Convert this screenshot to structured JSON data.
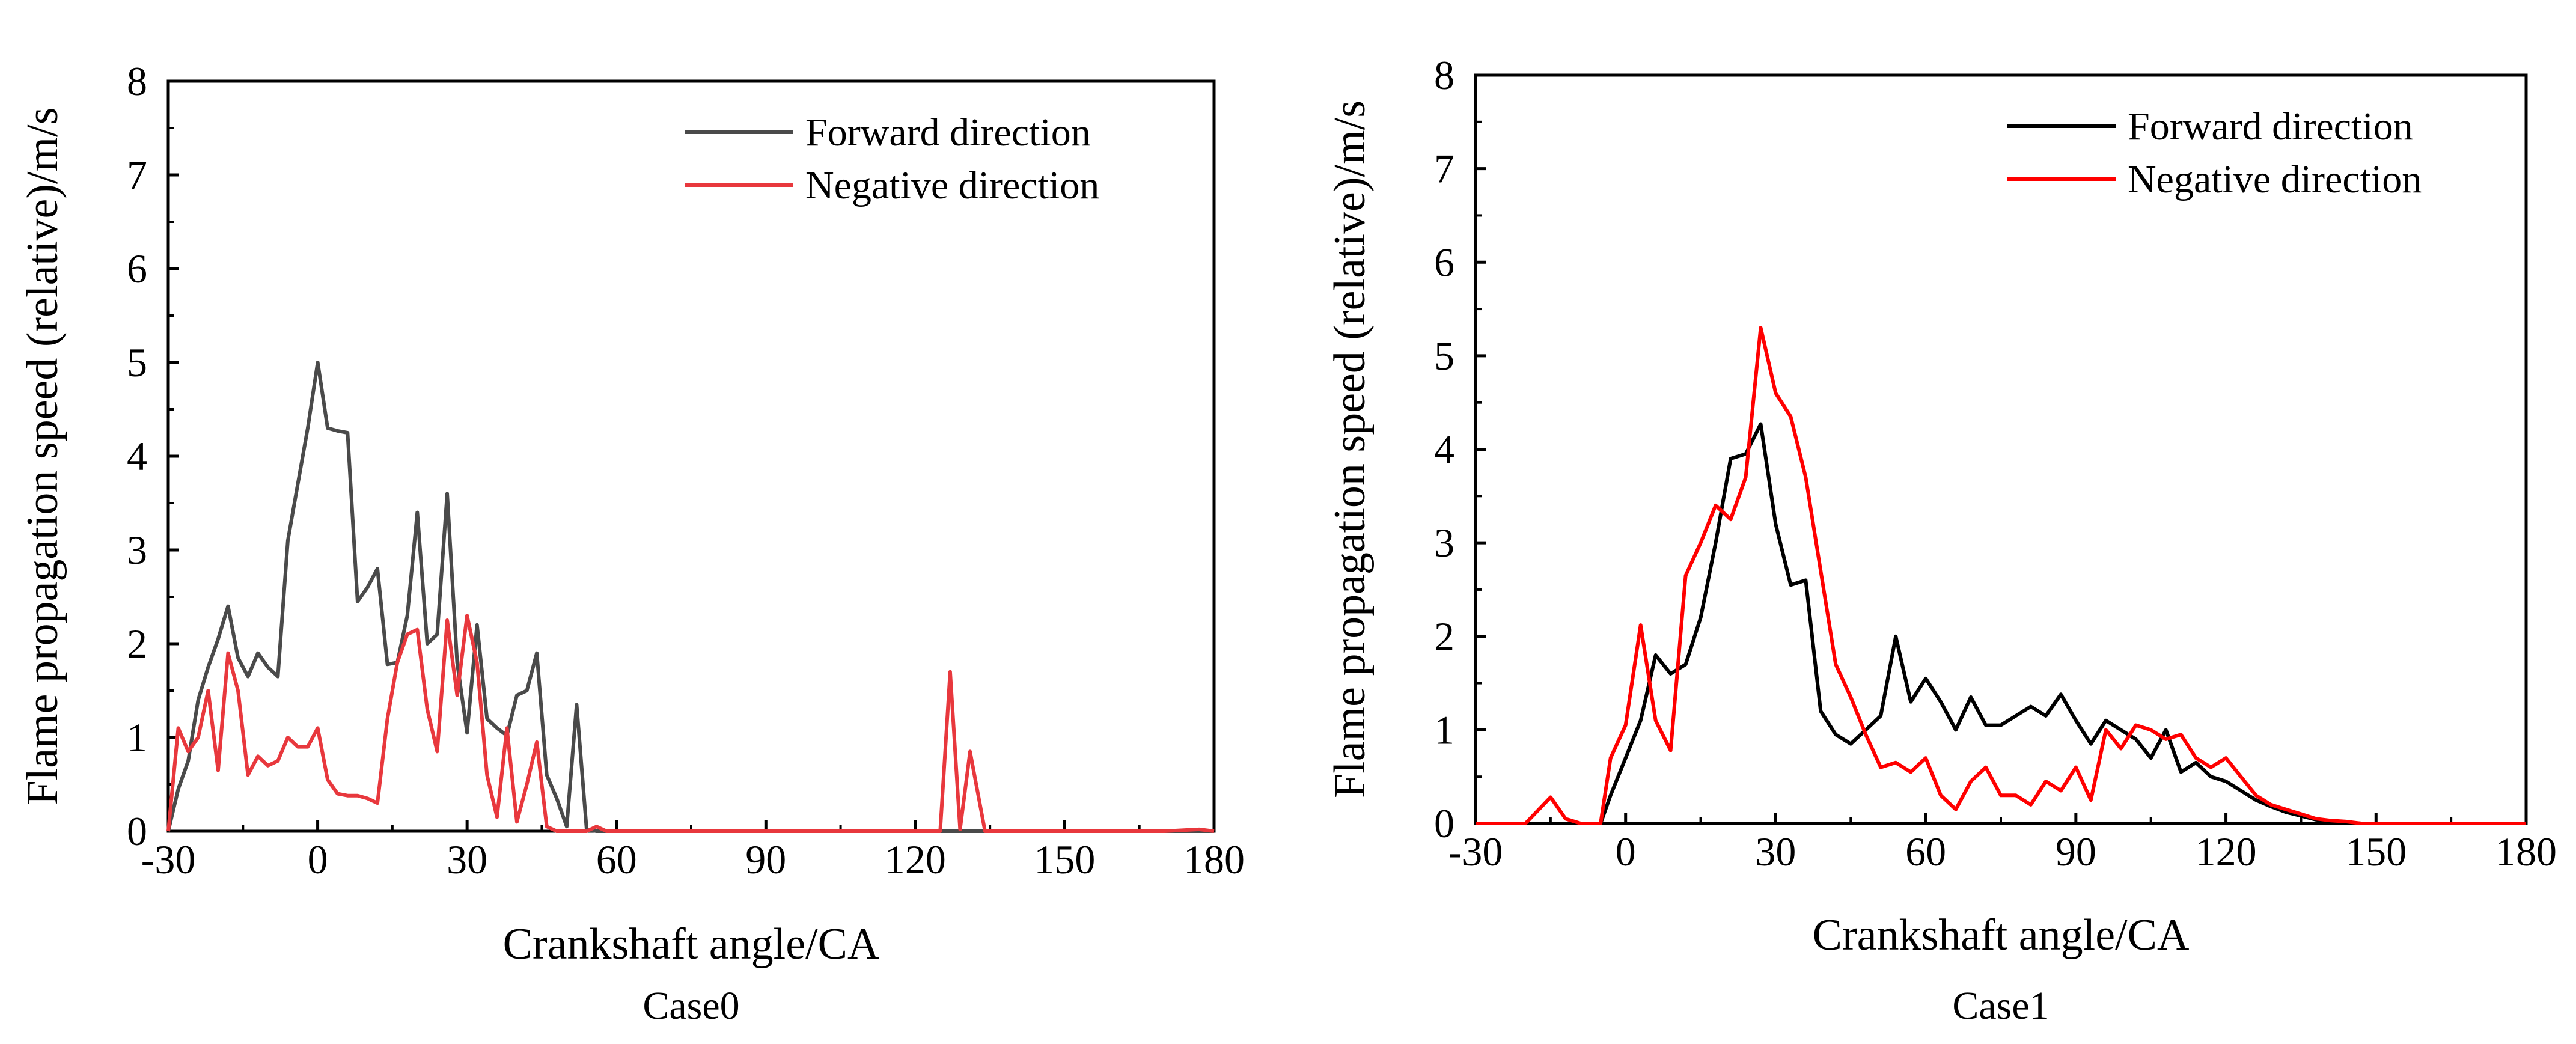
{
  "chart_data": [
    {
      "type": "line",
      "caption": "Case0",
      "xlabel": "Crankshaft angle/CA",
      "ylabel": "Flame propagation speed (relative)/m/s",
      "xlim": [
        -30,
        180
      ],
      "ylim": [
        0,
        8
      ],
      "xticks": [
        "-30",
        "0",
        "30",
        "60",
        "90",
        "120",
        "150",
        "180"
      ],
      "yticks": [
        "0",
        "1",
        "2",
        "3",
        "4",
        "5",
        "6",
        "7",
        "8"
      ],
      "grid": false,
      "legend_position": "top-right",
      "series": [
        {
          "name": "Forward direction",
          "color": "#4a4a4a",
          "x": [
            -30,
            -28,
            -26,
            -24,
            -22,
            -20,
            -18,
            -16,
            -14,
            -12,
            -10,
            -8,
            -6,
            -4,
            -2,
            0,
            2,
            4,
            6,
            8,
            10,
            12,
            14,
            16,
            18,
            20,
            22,
            24,
            26,
            28,
            30,
            32,
            34,
            36,
            38,
            40,
            42,
            44,
            46,
            48,
            50,
            52,
            54,
            56,
            58,
            60,
            62,
            180
          ],
          "y": [
            0,
            0.45,
            0.75,
            1.4,
            1.75,
            2.05,
            2.4,
            1.85,
            1.65,
            1.9,
            1.75,
            1.65,
            3.1,
            3.7,
            4.3,
            5.0,
            4.3,
            4.27,
            4.25,
            2.45,
            2.6,
            2.8,
            1.78,
            1.8,
            2.3,
            3.4,
            2.0,
            2.1,
            3.6,
            1.8,
            1.05,
            2.2,
            1.2,
            1.1,
            1.02,
            1.45,
            1.5,
            1.9,
            0.6,
            0.35,
            0.05,
            1.35,
            0.02,
            0,
            0,
            0,
            0,
            0
          ]
        },
        {
          "name": "Negative direction",
          "color": "#e8383d",
          "x": [
            -30,
            -28,
            -26,
            -24,
            -22,
            -20,
            -18,
            -16,
            -14,
            -12,
            -10,
            -8,
            -6,
            -4,
            -2,
            0,
            2,
            4,
            6,
            8,
            10,
            12,
            14,
            16,
            18,
            20,
            22,
            24,
            26,
            28,
            30,
            32,
            34,
            36,
            38,
            40,
            42,
            44,
            46,
            48,
            50,
            52,
            54,
            56,
            58,
            60,
            62,
            66,
            70,
            75,
            80,
            90,
            100,
            110,
            120,
            125,
            127,
            129,
            131,
            134,
            136,
            138,
            140,
            150,
            160,
            170,
            177,
            180
          ],
          "y": [
            0,
            1.1,
            0.85,
            1.0,
            1.5,
            0.65,
            1.9,
            1.5,
            0.6,
            0.8,
            0.7,
            0.75,
            1.0,
            0.9,
            0.9,
            1.1,
            0.55,
            0.4,
            0.38,
            0.38,
            0.35,
            0.3,
            1.2,
            1.8,
            2.1,
            2.15,
            1.3,
            0.85,
            2.25,
            1.45,
            2.3,
            1.8,
            0.6,
            0.15,
            1.1,
            0.1,
            0.5,
            0.95,
            0.05,
            0,
            0,
            0,
            0,
            0.05,
            0,
            0,
            0,
            0,
            0,
            0,
            0,
            0,
            0,
            0,
            0,
            0,
            1.7,
            0.02,
            0.85,
            0,
            0,
            0,
            0,
            0,
            0,
            0,
            0.02,
            0
          ]
        }
      ]
    },
    {
      "type": "line",
      "caption": "Case1",
      "xlabel": "Crankshaft angle/CA",
      "ylabel": "Flame propagation speed (relative)/m/s",
      "xlim": [
        -30,
        180
      ],
      "ylim": [
        0,
        8
      ],
      "xticks": [
        "-30",
        "0",
        "30",
        "60",
        "90",
        "120",
        "150",
        "180"
      ],
      "yticks": [
        "0",
        "1",
        "2",
        "3",
        "4",
        "5",
        "6",
        "7",
        "8"
      ],
      "grid": false,
      "legend_position": "top-right",
      "series": [
        {
          "name": "Forward direction",
          "color": "#000000",
          "x": [
            -30,
            -5,
            -3,
            0,
            3,
            6,
            9,
            12,
            15,
            18,
            21,
            24,
            27,
            30,
            33,
            36,
            39,
            42,
            45,
            48,
            51,
            54,
            57,
            60,
            63,
            66,
            69,
            72,
            75,
            78,
            81,
            84,
            87,
            90,
            93,
            96,
            99,
            102,
            105,
            108,
            111,
            114,
            117,
            120,
            123,
            126,
            129,
            132,
            135,
            138,
            141,
            144,
            147,
            150,
            160,
            180
          ],
          "y": [
            0,
            0,
            0.3,
            0.7,
            1.1,
            1.8,
            1.6,
            1.7,
            2.2,
            3.0,
            3.9,
            3.95,
            4.27,
            3.2,
            2.55,
            2.6,
            1.2,
            0.95,
            0.85,
            1.0,
            1.15,
            2.0,
            1.3,
            1.55,
            1.3,
            1.0,
            1.35,
            1.05,
            1.05,
            1.15,
            1.25,
            1.15,
            1.38,
            1.1,
            0.85,
            1.1,
            1.0,
            0.9,
            0.7,
            1.0,
            0.55,
            0.65,
            0.5,
            0.45,
            0.35,
            0.25,
            0.18,
            0.12,
            0.08,
            0.04,
            0.02,
            0.01,
            0,
            0,
            0,
            0
          ]
        },
        {
          "name": "Negative direction",
          "color": "#ff0000",
          "x": [
            -30,
            -20,
            -15,
            -12,
            -9,
            -5,
            -3,
            0,
            3,
            6,
            9,
            12,
            15,
            18,
            21,
            24,
            27,
            30,
            33,
            36,
            39,
            42,
            45,
            48,
            51,
            54,
            57,
            60,
            63,
            66,
            69,
            72,
            75,
            78,
            81,
            84,
            87,
            90,
            93,
            96,
            99,
            102,
            105,
            108,
            111,
            114,
            117,
            120,
            123,
            126,
            129,
            132,
            135,
            138,
            141,
            144,
            147,
            150,
            165,
            180
          ],
          "y": [
            0,
            0,
            0.28,
            0.05,
            0,
            0,
            0.7,
            1.05,
            2.12,
            1.1,
            0.78,
            2.65,
            3.0,
            3.4,
            3.25,
            3.7,
            5.3,
            4.6,
            4.35,
            3.7,
            2.7,
            1.7,
            1.35,
            0.95,
            0.6,
            0.65,
            0.55,
            0.7,
            0.3,
            0.15,
            0.45,
            0.6,
            0.3,
            0.3,
            0.2,
            0.45,
            0.35,
            0.6,
            0.25,
            1.0,
            0.8,
            1.05,
            1.0,
            0.9,
            0.95,
            0.7,
            0.6,
            0.7,
            0.5,
            0.3,
            0.2,
            0.15,
            0.1,
            0.05,
            0.03,
            0.02,
            0,
            0,
            0,
            0
          ]
        }
      ]
    }
  ]
}
